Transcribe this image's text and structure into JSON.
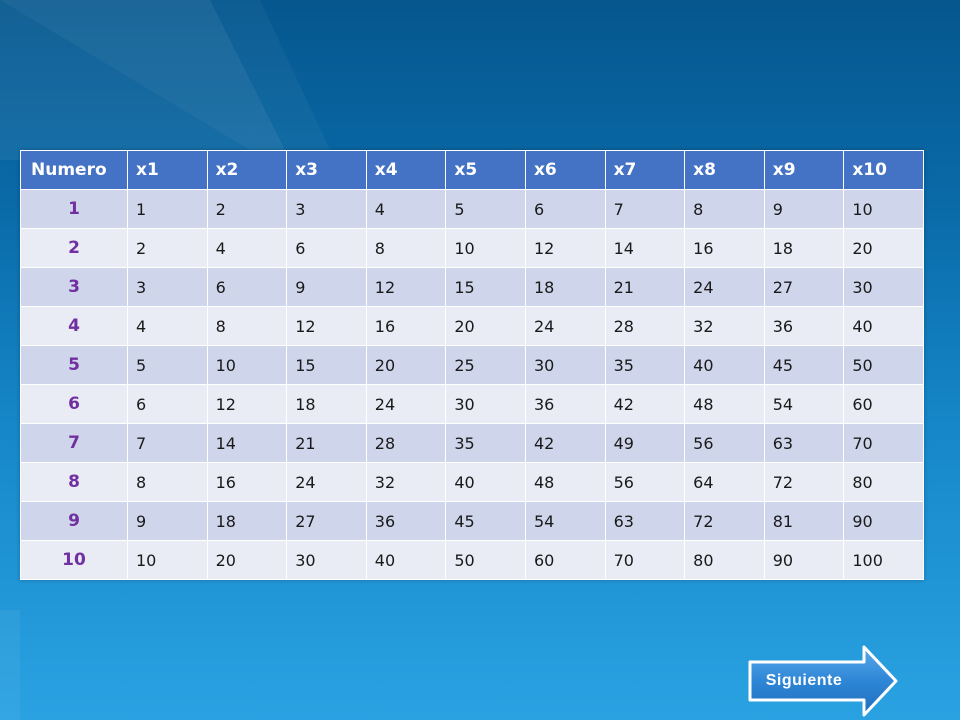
{
  "table": {
    "headers": [
      "Numero",
      "x1",
      "x2",
      "x3",
      "x4",
      "x5",
      "x6",
      "x7",
      "x8",
      "x9",
      "x10"
    ],
    "rows": [
      {
        "label": "1",
        "values": [
          "1",
          "2",
          "3",
          "4",
          "5",
          "6",
          "7",
          "8",
          "9",
          "10"
        ]
      },
      {
        "label": "2",
        "values": [
          "2",
          "4",
          "6",
          "8",
          "10",
          "12",
          "14",
          "16",
          "18",
          "20"
        ]
      },
      {
        "label": "3",
        "values": [
          "3",
          "6",
          "9",
          "12",
          "15",
          "18",
          "21",
          "24",
          "27",
          "30"
        ]
      },
      {
        "label": "4",
        "values": [
          "4",
          "8",
          "12",
          "16",
          "20",
          "24",
          "28",
          "32",
          "36",
          "40"
        ]
      },
      {
        "label": "5",
        "values": [
          "5",
          "10",
          "15",
          "20",
          "25",
          "30",
          "35",
          "40",
          "45",
          "50"
        ]
      },
      {
        "label": "6",
        "values": [
          "6",
          "12",
          "18",
          "24",
          "30",
          "36",
          "42",
          "48",
          "54",
          "60"
        ]
      },
      {
        "label": "7",
        "values": [
          "7",
          "14",
          "21",
          "28",
          "35",
          "42",
          "49",
          "56",
          "63",
          "70"
        ]
      },
      {
        "label": "8",
        "values": [
          "8",
          "16",
          "24",
          "32",
          "40",
          "48",
          "56",
          "64",
          "72",
          "80"
        ]
      },
      {
        "label": "9",
        "values": [
          "9",
          "18",
          "27",
          "36",
          "45",
          "54",
          "63",
          "72",
          "81",
          "90"
        ]
      },
      {
        "label": "10",
        "values": [
          "10",
          "20",
          "30",
          "40",
          "50",
          "60",
          "70",
          "80",
          "90",
          "100"
        ]
      }
    ]
  },
  "navigation": {
    "next_label": "Siguiente",
    "next_icon": "arrow-right-icon"
  },
  "colors": {
    "header_bg": "#4472c4",
    "row_odd_bg": "#cfd5ea",
    "row_even_bg": "#e9ebf5",
    "row_label_text": "#7030a0",
    "button_bg": "#2e86d6"
  }
}
